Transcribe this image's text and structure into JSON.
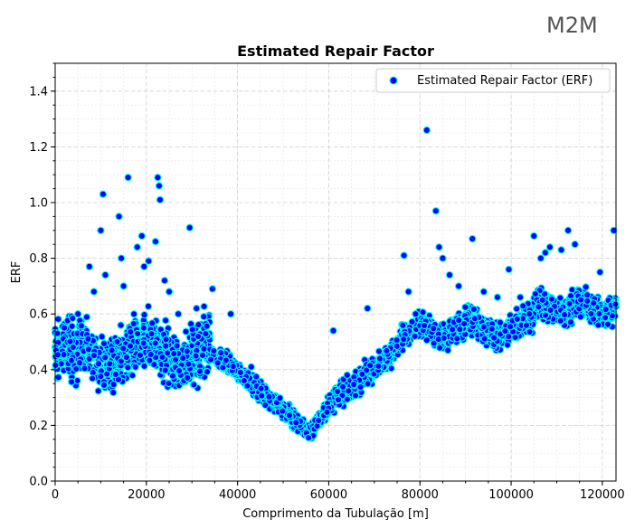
{
  "logo": {
    "text": "M2M"
  },
  "chart_data": {
    "type": "scatter",
    "title": "Estimated Repair Factor",
    "xlabel": "Comprimento da Tubulação [m]",
    "ylabel": "ERF",
    "xlim": [
      0,
      123000
    ],
    "ylim": [
      0,
      1.5
    ],
    "xticks": [
      0,
      20000,
      40000,
      60000,
      80000,
      100000,
      120000
    ],
    "xtick_labels": [
      "0",
      "20000",
      "40000",
      "60000",
      "80000",
      "100000",
      "120000"
    ],
    "yticks": [
      0.0,
      0.2,
      0.4,
      0.6,
      0.8,
      1.0,
      1.2,
      1.4
    ],
    "ytick_labels": [
      "0.0",
      "0.2",
      "0.4",
      "0.6",
      "0.8",
      "1.0",
      "1.2",
      "1.4"
    ],
    "grid": true,
    "legend_position": "top-right",
    "marker_face_color": "#0000ff",
    "marker_edge_color": "#00ffff",
    "series": [
      {
        "name": "Estimated Repair Factor (ERF)",
        "outliers": [
          [
            2000,
            0.55
          ],
          [
            5000,
            0.6
          ],
          [
            7500,
            0.77
          ],
          [
            8500,
            0.68
          ],
          [
            10000,
            0.9
          ],
          [
            10500,
            1.03
          ],
          [
            11000,
            0.74
          ],
          [
            14000,
            0.95
          ],
          [
            14500,
            0.8
          ],
          [
            15000,
            0.7
          ],
          [
            16000,
            1.09
          ],
          [
            18000,
            0.84
          ],
          [
            19000,
            0.88
          ],
          [
            19500,
            0.77
          ],
          [
            20500,
            0.79
          ],
          [
            22000,
            0.86
          ],
          [
            22500,
            1.09
          ],
          [
            22800,
            1.06
          ],
          [
            23000,
            1.01
          ],
          [
            24000,
            0.72
          ],
          [
            25000,
            0.68
          ],
          [
            27000,
            0.6
          ],
          [
            29500,
            0.91
          ],
          [
            31000,
            0.62
          ],
          [
            34500,
            0.69
          ],
          [
            38500,
            0.6
          ],
          [
            43000,
            0.41
          ],
          [
            61000,
            0.54
          ],
          [
            68500,
            0.62
          ],
          [
            76500,
            0.81
          ],
          [
            77500,
            0.68
          ],
          [
            81500,
            1.26
          ],
          [
            83500,
            0.97
          ],
          [
            84200,
            0.84
          ],
          [
            85000,
            0.8
          ],
          [
            86500,
            0.74
          ],
          [
            88500,
            0.7
          ],
          [
            91500,
            0.87
          ],
          [
            94000,
            0.68
          ],
          [
            97000,
            0.66
          ],
          [
            99500,
            0.76
          ],
          [
            102000,
            0.66
          ],
          [
            104000,
            0.6
          ],
          [
            105000,
            0.88
          ],
          [
            106500,
            0.8
          ],
          [
            107500,
            0.82
          ],
          [
            108500,
            0.84
          ],
          [
            111000,
            0.83
          ],
          [
            112500,
            0.9
          ],
          [
            114000,
            0.85
          ],
          [
            119500,
            0.75
          ],
          [
            122500,
            0.9
          ]
        ]
      }
    ]
  }
}
